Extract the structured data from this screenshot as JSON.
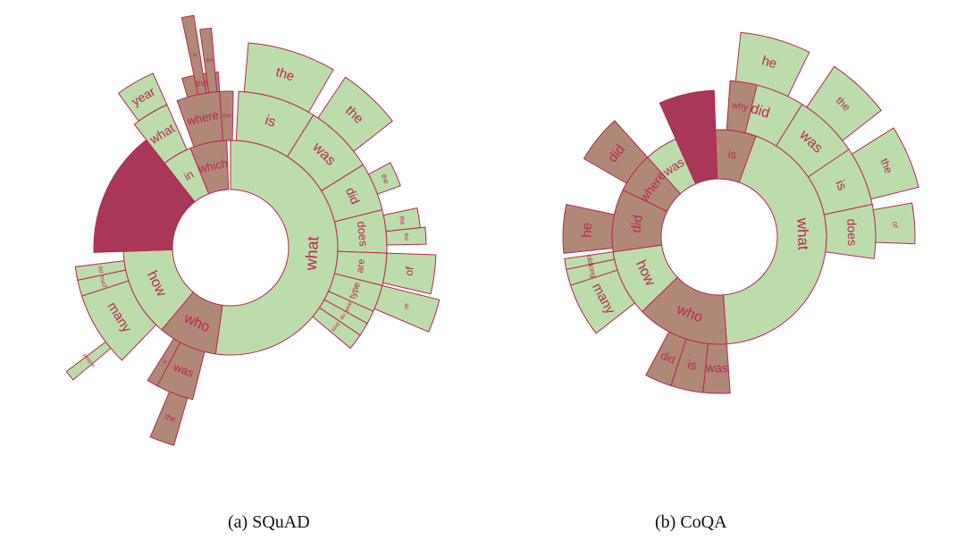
{
  "colors": {
    "green": "#bcdcac",
    "brown": "#b08877",
    "red": "#a8375a",
    "border": "#b8284e",
    "label": "#b8284e"
  },
  "captions": {
    "a": "(a) SQuAD",
    "b": "(b) CoQA"
  },
  "panel_a": [
    {
      "label": "what",
      "a0": 0,
      "a1": 188,
      "ring": 1,
      "len": 1,
      "color": "green",
      "size": 18
    },
    {
      "label": "who",
      "a0": 188,
      "a1": 220,
      "ring": 1,
      "len": 1,
      "color": "brown",
      "size": 16
    },
    {
      "label": "how",
      "a0": 220,
      "a1": 268,
      "ring": 1,
      "len": 1,
      "color": "green",
      "size": 16
    },
    {
      "label": "",
      "a0": 268,
      "a1": 322,
      "ring": 1,
      "len": 1.6,
      "color": "red",
      "size": 12
    },
    {
      "label": "in",
      "a0": 322,
      "a1": 338,
      "ring": 1,
      "len": 1,
      "color": "green",
      "size": 13
    },
    {
      "label": "which",
      "a0": 338,
      "a1": 358,
      "ring": 1,
      "len": 1,
      "color": "brown",
      "size": 13
    },
    {
      "label": "is",
      "a0": 3,
      "a1": 32,
      "ring": 2,
      "len": 1,
      "color": "green",
      "size": 16
    },
    {
      "label": "was",
      "a0": 32,
      "a1": 58,
      "ring": 2,
      "len": 1,
      "color": "green",
      "size": 16
    },
    {
      "label": "did",
      "a0": 58,
      "a1": 76,
      "ring": 2,
      "len": 1,
      "color": "green",
      "size": 14
    },
    {
      "label": "does",
      "a0": 76,
      "a1": 92,
      "ring": 2,
      "len": 1,
      "color": "green",
      "size": 13
    },
    {
      "label": "are",
      "a0": 92,
      "a1": 104,
      "ring": 2,
      "len": 1,
      "color": "green",
      "size": 11
    },
    {
      "label": "type",
      "a0": 104,
      "a1": 114,
      "ring": 2,
      "len": 1,
      "color": "green",
      "size": 10
    },
    {
      "label": "year",
      "a0": 114,
      "a1": 119,
      "ring": 2,
      "len": 1,
      "color": "green",
      "size": 6
    },
    {
      "label": "do",
      "a0": 119,
      "a1": 124,
      "ring": 2,
      "len": 1,
      "color": "green",
      "size": 6
    },
    {
      "label": "kind",
      "a0": 124,
      "a1": 130,
      "ring": 2,
      "len": 1,
      "color": "green",
      "size": 6
    },
    {
      "label": "the",
      "a0": 5,
      "a1": 30,
      "ring": 3,
      "len": 1,
      "color": "green",
      "size": 15
    },
    {
      "label": "the",
      "a0": 34,
      "a1": 52,
      "ring": 3,
      "len": 1,
      "color": "green",
      "size": 15
    },
    {
      "label": "the",
      "a0": 62,
      "a1": 70,
      "ring": 3,
      "len": 0.5,
      "color": "green",
      "size": 8
    },
    {
      "label": "of",
      "a0": 92,
      "a1": 103,
      "ring": 3,
      "len": 1,
      "color": "green",
      "size": 12
    },
    {
      "label": "the",
      "a0": 78,
      "a1": 84,
      "ring": 3,
      "len": 0.7,
      "color": "green",
      "size": 7
    },
    {
      "label": "the",
      "a0": 84,
      "a1": 89,
      "ring": 3,
      "len": 0.8,
      "color": "green",
      "size": 6
    },
    {
      "label": "of",
      "a0": 104,
      "a1": 113,
      "ring": 3,
      "len": 1.2,
      "color": "green",
      "size": 7
    },
    {
      "label": "many",
      "a0": 224,
      "a1": 252,
      "ring": 2,
      "len": 1,
      "color": "green",
      "size": 15
    },
    {
      "label": "much",
      "a0": 252,
      "a1": 258,
      "ring": 2,
      "len": 1,
      "color": "green",
      "size": 7
    },
    {
      "label": "did",
      "a0": 258,
      "a1": 263,
      "ring": 2,
      "len": 1,
      "color": "green",
      "size": 6
    },
    {
      "label": "people",
      "a0": 230,
      "a1": 233,
      "ring": 3,
      "len": 1,
      "color": "green",
      "size": 6
    },
    {
      "label": "was",
      "a0": 194,
      "a1": 208,
      "ring": 2,
      "len": 1,
      "color": "brown",
      "size": 13
    },
    {
      "label": "is",
      "a0": 208,
      "a1": 212,
      "ring": 2,
      "len": 1,
      "color": "brown",
      "size": 6
    },
    {
      "label": "the",
      "a0": 196,
      "a1": 203,
      "ring": 3,
      "len": 1,
      "color": "brown",
      "size": 9
    },
    {
      "label": "what",
      "a0": 322,
      "a1": 336,
      "ring": 2,
      "len": 1,
      "color": "green",
      "size": 14
    },
    {
      "label": "year",
      "a0": 324,
      "a1": 336,
      "ring": 3,
      "len": 0.7,
      "color": "green",
      "size": 14
    },
    {
      "label": "where",
      "a0": 340,
      "a1": 356,
      "ring": 2,
      "len": 1,
      "color": "brown",
      "size": 13
    },
    {
      "label": "the",
      "a0": 344,
      "a1": 356,
      "ring": 3,
      "len": 0.4,
      "color": "brown",
      "size": 10
    },
    {
      "label": "the",
      "a0": 356,
      "a1": 361,
      "ring": 2,
      "len": 1,
      "color": "brown",
      "size": 7
    },
    {
      "label": "did",
      "a0": 352,
      "a1": 355,
      "ring": 3,
      "len": 1.3,
      "color": "brown",
      "size": 6
    },
    {
      "label": "is",
      "a0": 348,
      "a1": 351,
      "ring": 3,
      "len": 1.6,
      "color": "brown",
      "size": 6
    }
  ],
  "panel_b": [
    {
      "label": "what",
      "a0": 0,
      "a1": 176,
      "ring": 1,
      "len": 1,
      "color": "green",
      "size": 17
    },
    {
      "label": "who",
      "a0": 176,
      "a1": 226,
      "ring": 1,
      "len": 1,
      "color": "brown",
      "size": 16
    },
    {
      "label": "how",
      "a0": 226,
      "a1": 262,
      "ring": 1,
      "len": 1,
      "color": "green",
      "size": 16
    },
    {
      "label": "did",
      "a0": 262,
      "a1": 296,
      "ring": 1,
      "len": 1,
      "color": "brown",
      "size": 15
    },
    {
      "label": "where",
      "a0": 296,
      "a1": 318,
      "ring": 1,
      "len": 1,
      "color": "brown",
      "size": 14
    },
    {
      "label": "was",
      "a0": 318,
      "a1": 336,
      "ring": 1,
      "len": 1,
      "color": "green",
      "size": 14
    },
    {
      "label": "",
      "a0": 336,
      "a1": 358,
      "ring": 1,
      "len": 1.8,
      "color": "red",
      "size": 12
    },
    {
      "label": "is",
      "a0": 358,
      "a1": 380,
      "ring": 1,
      "len": 1,
      "color": "brown",
      "size": 13
    },
    {
      "label": "did",
      "a0": 4,
      "a1": 32,
      "ring": 2,
      "len": 1,
      "color": "green",
      "size": 16
    },
    {
      "label": "was",
      "a0": 32,
      "a1": 56,
      "ring": 2,
      "len": 1,
      "color": "green",
      "size": 16
    },
    {
      "label": "is",
      "a0": 56,
      "a1": 78,
      "ring": 2,
      "len": 1,
      "color": "green",
      "size": 15
    },
    {
      "label": "does",
      "a0": 78,
      "a1": 98,
      "ring": 2,
      "len": 1,
      "color": "green",
      "size": 14
    },
    {
      "label": "he",
      "a0": 6,
      "a1": 26,
      "ring": 3,
      "len": 1,
      "color": "green",
      "size": 15
    },
    {
      "label": "the",
      "a0": 34,
      "a1": 52,
      "ring": 3,
      "len": 1,
      "color": "green",
      "size": 12
    },
    {
      "label": "the",
      "a0": 58,
      "a1": 76,
      "ring": 3,
      "len": 1,
      "color": "green",
      "size": 12
    },
    {
      "label": "of",
      "a0": 80,
      "a1": 92,
      "ring": 3,
      "len": 0.8,
      "color": "green",
      "size": 8
    },
    {
      "label": "is",
      "a0": 186,
      "a1": 198,
      "ring": 2,
      "len": 1,
      "color": "brown",
      "size": 14
    },
    {
      "label": "was",
      "a0": 176,
      "a1": 186,
      "ring": 2,
      "len": 1,
      "color": "brown",
      "size": 14
    },
    {
      "label": "did",
      "a0": 198,
      "a1": 208,
      "ring": 2,
      "len": 1,
      "color": "brown",
      "size": 12
    },
    {
      "label": "many",
      "a0": 232,
      "a1": 252,
      "ring": 2,
      "len": 1,
      "color": "green",
      "size": 15
    },
    {
      "label": "long",
      "a0": 252,
      "a1": 258,
      "ring": 2,
      "len": 1,
      "color": "green",
      "size": 8
    },
    {
      "label": "old",
      "a0": 258,
      "a1": 262,
      "ring": 2,
      "len": 1,
      "color": "green",
      "size": 8
    },
    {
      "label": "he",
      "a0": 264,
      "a1": 282,
      "ring": 2,
      "len": 1,
      "color": "brown",
      "size": 15
    },
    {
      "label": "did",
      "a0": 300,
      "a1": 318,
      "ring": 2,
      "len": 1,
      "color": "brown",
      "size": 15
    },
    {
      "label": "why",
      "a0": 4,
      "a1": 14,
      "ring": 2,
      "len": 1,
      "color": "brown",
      "size": 10
    }
  ]
}
